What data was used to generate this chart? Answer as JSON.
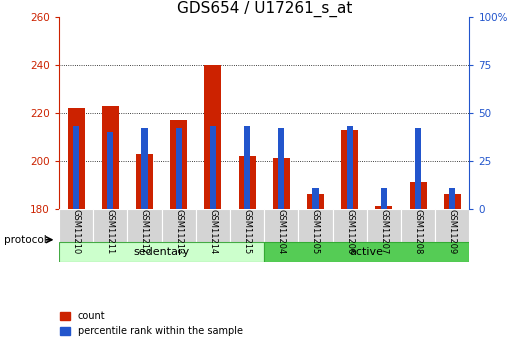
{
  "title": "GDS654 / U17261_s_at",
  "categories": [
    "GSM11210",
    "GSM11211",
    "GSM11212",
    "GSM11213",
    "GSM11214",
    "GSM11215",
    "GSM11204",
    "GSM11205",
    "GSM11206",
    "GSM11207",
    "GSM11208",
    "GSM11209"
  ],
  "count_values": [
    222,
    223,
    203,
    217,
    240,
    202,
    201,
    186,
    213,
    181,
    191,
    186
  ],
  "percentile_values": [
    43,
    40,
    42,
    42,
    43,
    43,
    42,
    11,
    43,
    11,
    42,
    11
  ],
  "baseline": 180,
  "ylim": [
    180,
    260
  ],
  "yticks": [
    180,
    200,
    220,
    240,
    260
  ],
  "right_yticks": [
    0,
    25,
    50,
    75,
    100
  ],
  "bar_width": 0.5,
  "blue_bar_width": 0.18,
  "red_color": "#cc2200",
  "blue_color": "#2255cc",
  "sedentary_group": [
    0,
    1,
    2,
    3,
    4,
    5
  ],
  "active_group": [
    6,
    7,
    8,
    9,
    10,
    11
  ],
  "sedentary_label": "sedentary",
  "active_label": "active",
  "protocol_label": "protocol",
  "sedentary_bg": "#ccffcc",
  "active_bg": "#55cc55",
  "legend_count": "count",
  "legend_percentile": "percentile rank within the sample",
  "title_fontsize": 11,
  "tick_fontsize": 7.5,
  "cat_fontsize": 6.0,
  "group_fontsize": 8
}
